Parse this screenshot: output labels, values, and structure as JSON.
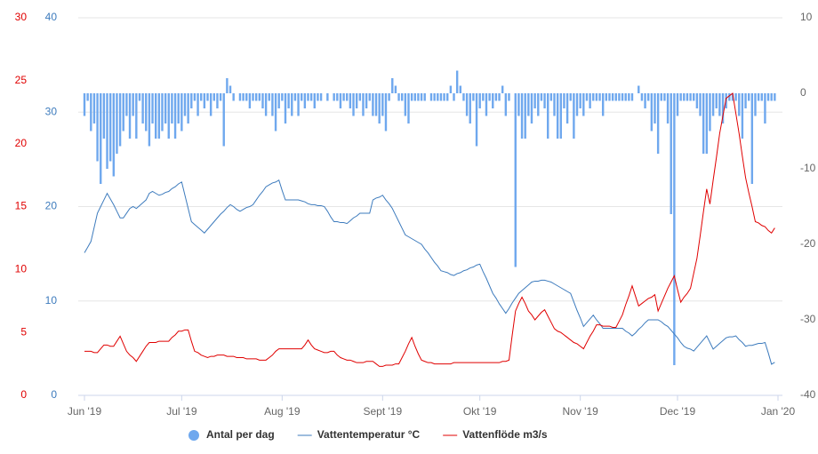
{
  "chart_data": {
    "type": "combo",
    "categories": [
      "Jun '19",
      null,
      null,
      null,
      null,
      null,
      null,
      null,
      null,
      null,
      null,
      null,
      null,
      null,
      null,
      null,
      null,
      null,
      null,
      null,
      null,
      null,
      null,
      null,
      null,
      null,
      null,
      null,
      null,
      null,
      "Jul '19",
      null,
      null,
      null,
      null,
      null,
      null,
      null,
      null,
      null,
      null,
      null,
      null,
      null,
      null,
      null,
      null,
      null,
      null,
      null,
      null,
      null,
      null,
      null,
      null,
      null,
      null,
      null,
      null,
      null,
      null,
      "Aug '19",
      null,
      null,
      null,
      null,
      null,
      null,
      null,
      null,
      null,
      null,
      null,
      null,
      null,
      null,
      null,
      null,
      null,
      null,
      null,
      null,
      null,
      null,
      null,
      null,
      null,
      null,
      null,
      null,
      null,
      null,
      "Sept '19",
      null,
      null,
      null,
      null,
      null,
      null,
      null,
      null,
      null,
      null,
      null,
      null,
      null,
      null,
      null,
      null,
      null,
      null,
      null,
      null,
      null,
      null,
      null,
      null,
      null,
      null,
      null,
      null,
      null,
      "Okt '19",
      null,
      null,
      null,
      null,
      null,
      null,
      null,
      null,
      null,
      null,
      null,
      null,
      null,
      null,
      null,
      null,
      null,
      null,
      null,
      null,
      null,
      null,
      null,
      null,
      null,
      null,
      null,
      null,
      null,
      null,
      "Nov '19",
      null,
      null,
      null,
      null,
      null,
      null,
      null,
      null,
      null,
      null,
      null,
      null,
      null,
      null,
      null,
      null,
      null,
      null,
      null,
      null,
      null,
      null,
      null,
      null,
      null,
      null,
      null,
      null,
      null,
      "Dec '19",
      null,
      null,
      null,
      null,
      null,
      null,
      null,
      null,
      null,
      null,
      null,
      null,
      null,
      null,
      null,
      null,
      null,
      null,
      null,
      null,
      null,
      null,
      null,
      null,
      null,
      null,
      null,
      null,
      null,
      null,
      "Jan '20"
    ],
    "ylim": [
      0,
      40
    ],
    "yticks": [
      0,
      10,
      20,
      30,
      40
    ],
    "y2lim": [
      -40,
      10
    ],
    "y2ticks": [
      -40,
      -30,
      -20,
      -10,
      0,
      10
    ],
    "y3lim": [
      0,
      30
    ],
    "y3ticks": [
      0,
      5,
      10,
      15,
      20,
      25,
      30
    ],
    "grid": true,
    "legend": "bottom",
    "series": [
      {
        "name": "Antal per dag",
        "type": "bar",
        "axis": "y2",
        "color": "#6fa8ee",
        "values": [
          -3,
          -1,
          -5,
          -4,
          -9,
          -12,
          -6,
          -10,
          -9,
          -11,
          -8,
          -7,
          -5,
          -3,
          -6,
          -3,
          -6,
          -1,
          -4,
          -5,
          -7,
          -4,
          -6,
          -6,
          -5,
          -4,
          -6,
          -4,
          -6,
          -4,
          -5,
          -3,
          -4,
          -2,
          -1,
          -3,
          -1,
          -2,
          -1,
          -3,
          -1,
          -2,
          -1,
          -7,
          2,
          1,
          -1,
          0,
          -1,
          -1,
          -1,
          -2,
          -1,
          -1,
          -1,
          -2,
          -3,
          -1,
          -3,
          -5,
          -2,
          -1,
          -4,
          -2,
          -3,
          -1,
          -3,
          -1,
          -2,
          -1,
          -1,
          -2,
          -1,
          -1,
          0,
          -1,
          0,
          -1,
          -1,
          -2,
          -1,
          -1,
          -2,
          -3,
          -2,
          -1,
          -3,
          -2,
          -1,
          -3,
          -3,
          -4,
          -3,
          -5,
          -1,
          2,
          1,
          -1,
          -1,
          -3,
          -4,
          -1,
          -1,
          -1,
          -1,
          -1,
          0,
          -1,
          -1,
          -1,
          -1,
          -1,
          -1,
          1,
          -1,
          3,
          1,
          -1,
          -3,
          -4,
          -1,
          -7,
          -2,
          -1,
          -3,
          -1,
          -2,
          -1,
          -1,
          1,
          -3,
          -1,
          0,
          -23,
          -3,
          -6,
          -6,
          -3,
          -4,
          -2,
          -3,
          -1,
          -2,
          -6,
          -1,
          -3,
          -6,
          -6,
          -2,
          -4,
          -1,
          -6,
          -3,
          -2,
          -3,
          -1,
          -2,
          -1,
          -1,
          -1,
          -3,
          -1,
          -1,
          -1,
          -1,
          -1,
          -1,
          -1,
          -1,
          -1,
          0,
          1,
          -1,
          -2,
          -1,
          -5,
          -4,
          -8,
          -1,
          -1,
          -4,
          -16,
          -36,
          -3,
          -1,
          -1,
          -1,
          -1,
          -1,
          -2,
          -3,
          -8,
          -8,
          -5,
          -3,
          -2,
          -3,
          -4,
          -2,
          -1,
          -1,
          -1,
          -3,
          -6,
          -2,
          -1,
          -12,
          -3,
          -1,
          -1,
          -4,
          -1,
          -1,
          -1,
          null
        ]
      },
      {
        "name": "Vattentemperatur °C",
        "type": "line",
        "axis": "y",
        "color": "#3d7bbd",
        "values": [
          15.1,
          15.7,
          16.3,
          17.8,
          19.3,
          20.0,
          20.7,
          21.4,
          20.8,
          20.2,
          19.5,
          18.8,
          18.8,
          19.3,
          19.8,
          20.0,
          19.8,
          20.1,
          20.4,
          20.7,
          21.4,
          21.6,
          21.4,
          21.2,
          21.3,
          21.5,
          21.6,
          21.9,
          22.1,
          22.4,
          22.6,
          21.2,
          19.8,
          18.4,
          18.1,
          17.8,
          17.5,
          17.2,
          17.6,
          18.0,
          18.4,
          18.8,
          19.2,
          19.5,
          19.9,
          20.2,
          20.0,
          19.7,
          19.5,
          19.7,
          19.9,
          20.0,
          20.2,
          20.7,
          21.2,
          21.6,
          22.1,
          22.3,
          22.5,
          22.6,
          22.8,
          21.7,
          20.7,
          20.7,
          20.7,
          20.7,
          20.7,
          20.6,
          20.5,
          20.3,
          20.2,
          20.2,
          20.1,
          20.1,
          20.0,
          19.5,
          18.9,
          18.4,
          18.4,
          18.3,
          18.3,
          18.2,
          18.5,
          18.8,
          19.0,
          19.3,
          19.3,
          19.3,
          19.3,
          20.7,
          20.9,
          21.0,
          21.2,
          20.7,
          20.3,
          19.8,
          19.1,
          18.4,
          17.7,
          17.0,
          16.8,
          16.6,
          16.4,
          16.2,
          16.0,
          15.5,
          15.1,
          14.6,
          14.1,
          13.7,
          13.2,
          13.1,
          13.0,
          12.8,
          12.7,
          12.9,
          13.0,
          13.2,
          13.3,
          13.5,
          13.6,
          13.8,
          13.9,
          13.1,
          12.4,
          11.6,
          10.8,
          10.3,
          9.7,
          9.2,
          8.7,
          9.2,
          9.8,
          10.3,
          10.8,
          11.1,
          11.4,
          11.7,
          12.0,
          12.1,
          12.1,
          12.2,
          12.2,
          12.1,
          12.0,
          11.8,
          11.6,
          11.4,
          11.2,
          11.0,
          10.8,
          9.9,
          9.0,
          8.2,
          7.3,
          7.7,
          8.1,
          8.5,
          8.0,
          7.6,
          7.1,
          7.1,
          7.1,
          7.1,
          7.1,
          7.1,
          7.1,
          6.8,
          6.6,
          6.3,
          6.6,
          7.0,
          7.3,
          7.7,
          8.0,
          8.0,
          8.0,
          8.0,
          7.8,
          7.5,
          7.3,
          6.9,
          6.5,
          6.1,
          5.6,
          5.2,
          5.0,
          4.9,
          4.7,
          5.1,
          5.5,
          5.9,
          6.3,
          5.6,
          4.9,
          5.2,
          5.5,
          5.8,
          6.1,
          6.2,
          6.2,
          6.3,
          5.9,
          5.6,
          5.2,
          5.3,
          5.3,
          5.4,
          5.5,
          5.5,
          5.6,
          4.5,
          3.3,
          3.5,
          null
        ]
      },
      {
        "name": "Vattenflöde m3/s",
        "type": "line",
        "axis": "y3",
        "color": "#e00000",
        "values": [
          3.5,
          3.5,
          3.5,
          3.4,
          3.4,
          3.7,
          4.0,
          4.0,
          3.9,
          3.9,
          4.3,
          4.7,
          4.1,
          3.5,
          3.2,
          3.0,
          2.7,
          3.1,
          3.5,
          3.9,
          4.2,
          4.2,
          4.2,
          4.3,
          4.3,
          4.3,
          4.3,
          4.6,
          4.8,
          5.1,
          5.1,
          5.2,
          5.2,
          4.3,
          3.5,
          3.4,
          3.2,
          3.1,
          3.0,
          3.1,
          3.1,
          3.2,
          3.2,
          3.2,
          3.1,
          3.1,
          3.1,
          3.0,
          3.0,
          3.0,
          2.9,
          2.9,
          2.9,
          2.9,
          2.8,
          2.8,
          2.8,
          3.0,
          3.2,
          3.5,
          3.7,
          3.7,
          3.7,
          3.7,
          3.7,
          3.7,
          3.7,
          3.7,
          4.0,
          4.4,
          4.0,
          3.7,
          3.6,
          3.5,
          3.4,
          3.4,
          3.5,
          3.5,
          3.2,
          3.0,
          2.9,
          2.8,
          2.8,
          2.7,
          2.6,
          2.6,
          2.6,
          2.7,
          2.7,
          2.7,
          2.5,
          2.3,
          2.3,
          2.4,
          2.4,
          2.4,
          2.5,
          2.5,
          3.0,
          3.5,
          4.1,
          4.6,
          3.9,
          3.3,
          2.8,
          2.7,
          2.6,
          2.6,
          2.5,
          2.5,
          2.5,
          2.5,
          2.5,
          2.5,
          2.6,
          2.6,
          2.6,
          2.6,
          2.6,
          2.6,
          2.6,
          2.6,
          2.6,
          2.6,
          2.6,
          2.6,
          2.6,
          2.6,
          2.6,
          2.7,
          2.7,
          2.8,
          4.8,
          6.7,
          7.3,
          7.8,
          7.3,
          6.7,
          6.4,
          6.0,
          6.3,
          6.6,
          6.8,
          6.3,
          5.8,
          5.3,
          5.1,
          5.0,
          4.8,
          4.6,
          4.4,
          4.2,
          4.1,
          3.9,
          3.7,
          4.2,
          4.7,
          5.1,
          5.6,
          5.6,
          5.5,
          5.5,
          5.5,
          5.4,
          5.4,
          5.9,
          6.4,
          7.2,
          7.9,
          8.7,
          7.9,
          7.1,
          7.3,
          7.5,
          7.7,
          7.8,
          8.0,
          6.7,
          7.3,
          7.9,
          8.5,
          9.0,
          9.5,
          8.4,
          7.4,
          7.8,
          8.1,
          8.5,
          9.7,
          10.9,
          12.7,
          14.6,
          16.4,
          15.2,
          17.1,
          18.9,
          20.8,
          22.2,
          23.6,
          23.8,
          24.0,
          22.4,
          20.8,
          19.0,
          17.3,
          16.1,
          15.0,
          13.8,
          13.7,
          13.5,
          13.4,
          13.1,
          12.9,
          13.3,
          null
        ]
      }
    ]
  }
}
